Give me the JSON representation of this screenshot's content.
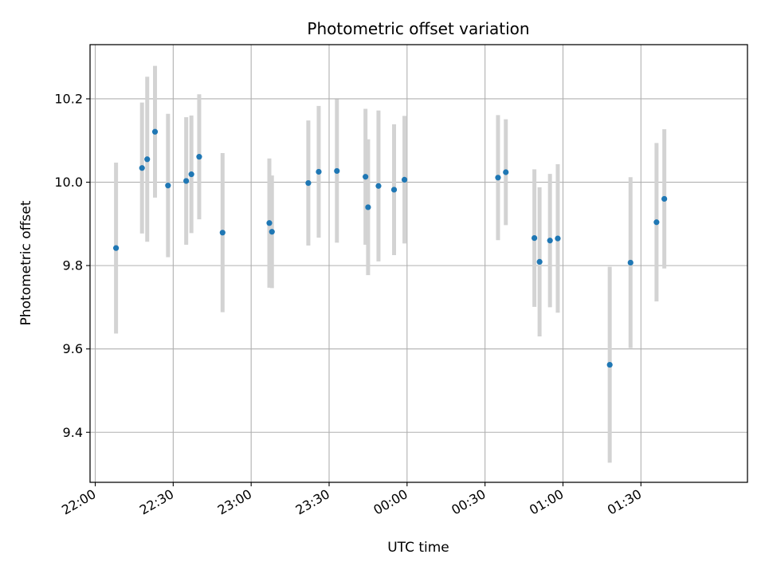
{
  "chart_data": {
    "type": "scatter",
    "title": "Photometric offset variation",
    "xlabel": "UTC time",
    "ylabel": "Photometric offset",
    "x_ticks": [
      "22:00",
      "22:30",
      "23:00",
      "23:30",
      "00:00",
      "00:30",
      "01:00",
      "01:30"
    ],
    "y_ticks": [
      "9.4",
      "9.6",
      "9.8",
      "10.0",
      "10.2"
    ],
    "xlim": [
      "21:58",
      "02:11"
    ],
    "ylim": [
      9.28,
      10.33
    ],
    "grid": true,
    "errorbar_color": "#d3d3d3",
    "point_color": "#1f77b4",
    "series": [
      {
        "points": [
          {
            "x": "22:08",
            "y": 9.842,
            "err": 0.205
          },
          {
            "x": "22:18",
            "y": 10.034,
            "err": 0.157
          },
          {
            "x": "22:20",
            "y": 10.055,
            "err": 0.198
          },
          {
            "x": "22:23",
            "y": 10.121,
            "err": 0.158
          },
          {
            "x": "22:28",
            "y": 9.992,
            "err": 0.172
          },
          {
            "x": "22:35",
            "y": 10.003,
            "err": 0.153
          },
          {
            "x": "22:37",
            "y": 10.019,
            "err": 0.141
          },
          {
            "x": "22:40",
            "y": 10.061,
            "err": 0.15
          },
          {
            "x": "22:49",
            "y": 9.879,
            "err": 0.191
          },
          {
            "x": "23:07",
            "y": 9.902,
            "err": 0.155
          },
          {
            "x": "23:08",
            "y": 9.881,
            "err": 0.135
          },
          {
            "x": "23:22",
            "y": 9.998,
            "err": 0.15
          },
          {
            "x": "23:26",
            "y": 10.025,
            "err": 0.158
          },
          {
            "x": "23:33",
            "y": 10.027,
            "err": 0.172
          },
          {
            "x": "23:44",
            "y": 10.013,
            "err": 0.163
          },
          {
            "x": "23:45",
            "y": 9.94,
            "err": 0.163
          },
          {
            "x": "23:49",
            "y": 9.991,
            "err": 0.181
          },
          {
            "x": "23:55",
            "y": 9.982,
            "err": 0.157
          },
          {
            "x": "23:59",
            "y": 10.006,
            "err": 0.153
          },
          {
            "x": "00:35",
            "y": 10.011,
            "err": 0.15
          },
          {
            "x": "00:38",
            "y": 10.024,
            "err": 0.127
          },
          {
            "x": "00:49",
            "y": 9.866,
            "err": 0.165
          },
          {
            "x": "00:51",
            "y": 9.809,
            "err": 0.179
          },
          {
            "x": "00:55",
            "y": 9.86,
            "err": 0.16
          },
          {
            "x": "00:58",
            "y": 9.865,
            "err": 0.178
          },
          {
            "x": "01:18",
            "y": 9.562,
            "err": 0.235
          },
          {
            "x": "01:26",
            "y": 9.807,
            "err": 0.205
          },
          {
            "x": "01:36",
            "y": 9.904,
            "err": 0.19
          },
          {
            "x": "01:39",
            "y": 9.96,
            "err": 0.167
          }
        ]
      }
    ]
  }
}
